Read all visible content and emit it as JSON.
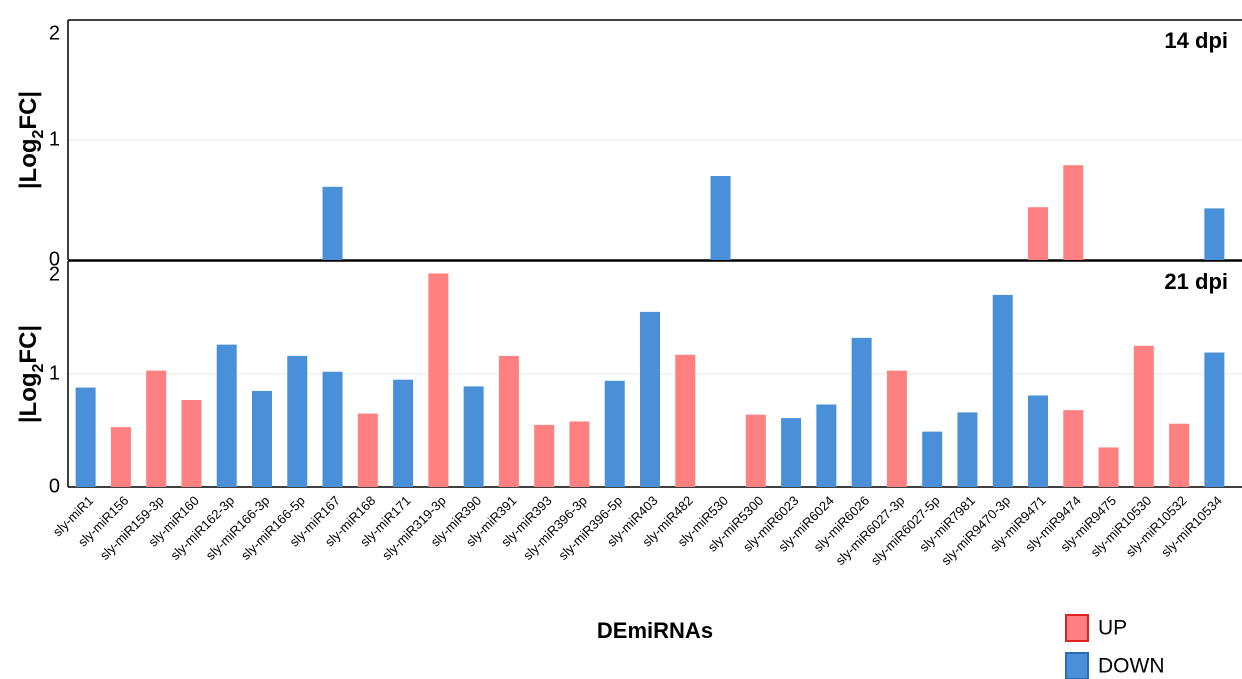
{
  "chart_data": [
    {
      "type": "bar",
      "panel_label": "14 dpi",
      "ylabel": [
        "|Log",
        "2",
        "FC|"
      ],
      "ylim": [
        0,
        2
      ],
      "yticks": [
        0,
        1,
        2
      ],
      "grid": true,
      "series": [
        {
          "name": "UP",
          "color": "#ff8080",
          "values": [
            null,
            null,
            null,
            null,
            null,
            null,
            null,
            null,
            null,
            null,
            null,
            null,
            null,
            null,
            null,
            null,
            null,
            null,
            null,
            null,
            null,
            null,
            null,
            null,
            null,
            null,
            null,
            0.44,
            0.79,
            null,
            null,
            null,
            null
          ]
        },
        {
          "name": "DOWN",
          "color": "#4a90d9",
          "values": [
            null,
            null,
            null,
            null,
            null,
            null,
            null,
            0.61,
            null,
            null,
            null,
            null,
            null,
            null,
            null,
            null,
            null,
            null,
            0.7,
            null,
            null,
            null,
            null,
            null,
            null,
            null,
            null,
            null,
            null,
            null,
            null,
            null,
            0.43
          ]
        }
      ]
    },
    {
      "type": "bar",
      "panel_label": "21 dpi",
      "ylabel": [
        "|Log",
        "2",
        "FC|"
      ],
      "xlabel": "DEmiRNAs",
      "ylim": [
        0,
        2
      ],
      "yticks": [
        0,
        1,
        2
      ],
      "grid": true,
      "categories": [
        "sly-miR1",
        "sly-miR156",
        "sly-miR159-3p",
        "sly-miR160",
        "sly-miR162-3p",
        "sly-miR166-3p",
        "sly-miR166-5p",
        "sly-miR167",
        "sly-miR168",
        "sly-miR171",
        "sly-miR319-3p",
        "sly-miR390",
        "sly-miR391",
        "sly-miR393",
        "sly-miR396-3p",
        "sly-miR396-5p",
        "sly-miR403",
        "sly-miR482",
        "sly-miR530",
        "sly-miR5300",
        "sly-miR6023",
        "sly-miR6024",
        "sly-miR6026",
        "sly-miR6027-3p",
        "sly-miR6027-5p",
        "sly-miR7981",
        "sly-miR9470-3p",
        "sly-miR9471",
        "sly-miR9474",
        "sly-miR9475",
        "sly-miR10530",
        "sly-miR10532",
        "sly-miR10534"
      ],
      "series": [
        {
          "name": "UP",
          "color": "#ff8080",
          "values": [
            null,
            0.53,
            1.03,
            0.77,
            null,
            null,
            null,
            null,
            0.65,
            null,
            1.89,
            null,
            1.16,
            0.55,
            0.58,
            null,
            null,
            1.17,
            null,
            0.64,
            null,
            null,
            null,
            1.03,
            null,
            null,
            null,
            null,
            0.68,
            0.35,
            1.25,
            0.56,
            null
          ]
        },
        {
          "name": "DOWN",
          "color": "#4a90d9",
          "values": [
            0.88,
            null,
            null,
            null,
            1.26,
            0.85,
            1.16,
            1.02,
            null,
            0.95,
            null,
            0.89,
            null,
            null,
            null,
            0.94,
            1.55,
            null,
            null,
            null,
            0.61,
            0.73,
            1.32,
            null,
            0.49,
            0.66,
            1.7,
            0.81,
            null,
            null,
            null,
            null,
            1.19
          ]
        }
      ]
    }
  ]
}
